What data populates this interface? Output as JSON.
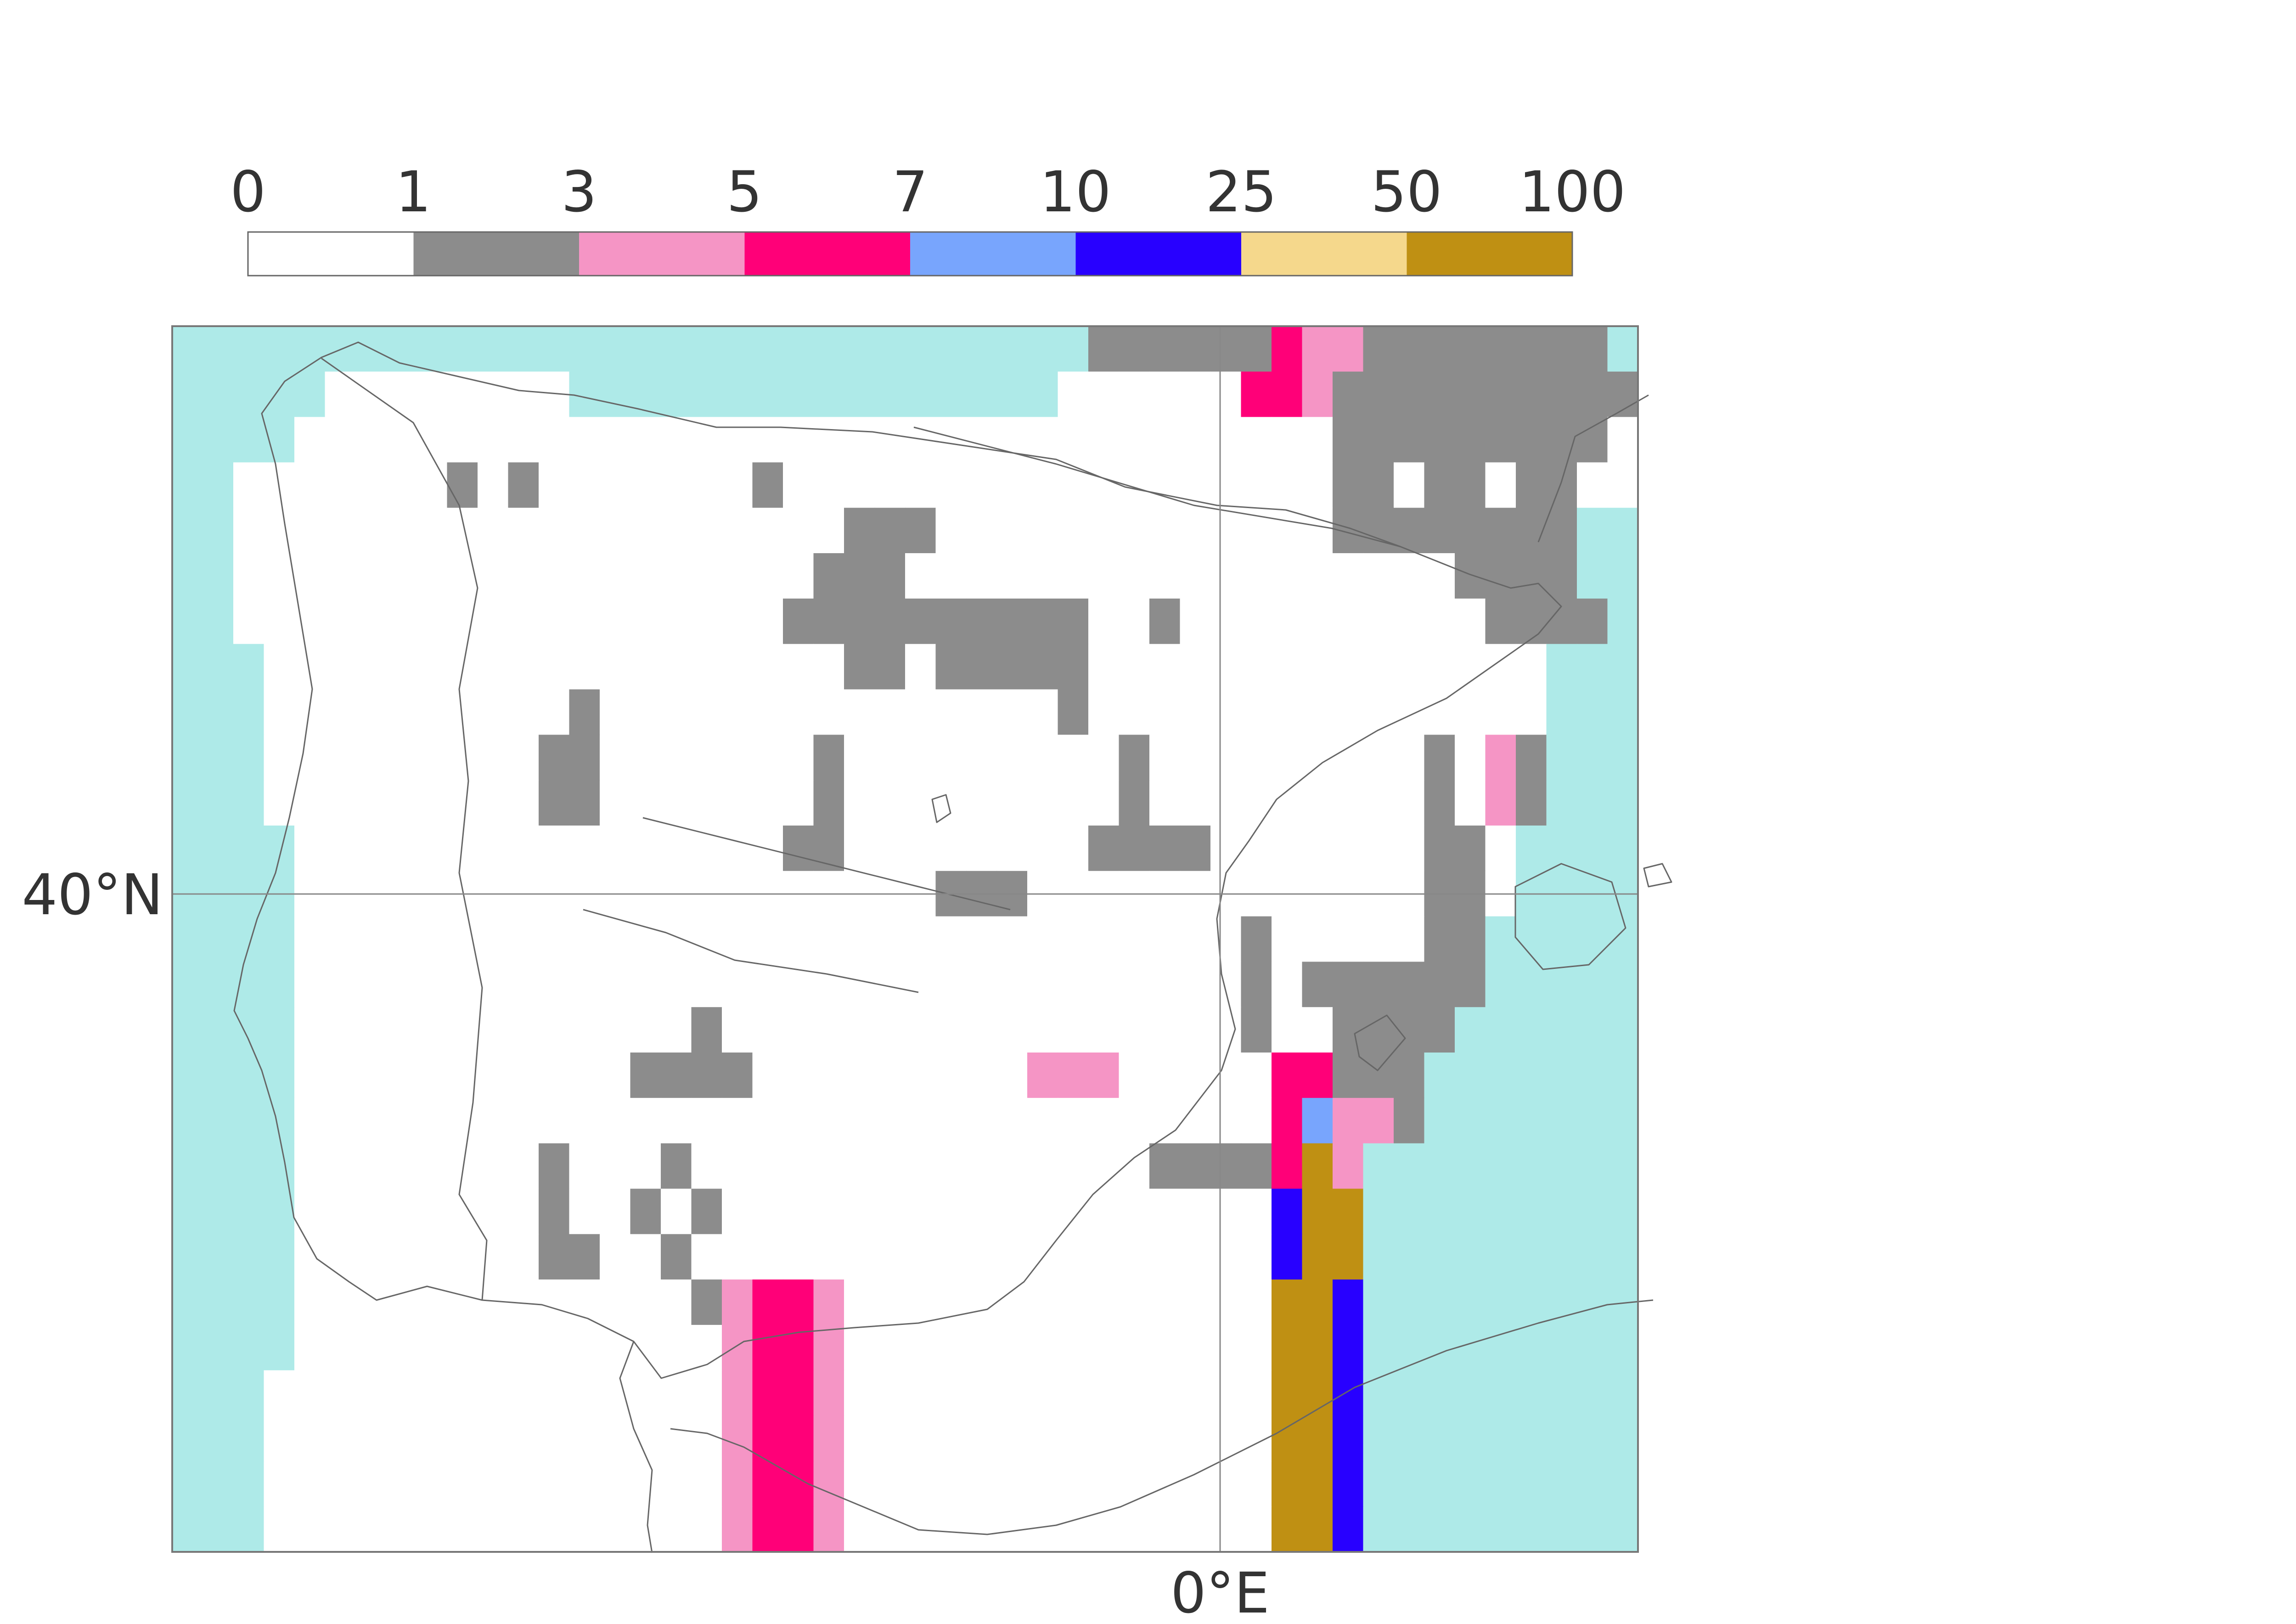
{
  "colorbar": {
    "tick_labels": [
      "0",
      "1",
      "3",
      "5",
      "7",
      "10",
      "25",
      "50",
      "100"
    ],
    "colors": [
      "#ffffff",
      "#8c8c8c",
      "#f595c5",
      "#ff0078",
      "#78a5fd",
      "#2800ff",
      "#f5d88c",
      "#bf9013"
    ]
  },
  "map": {
    "ocean_color": "#aeeae8",
    "cell_codes": [
      "0: no data",
      "1: class 0-1",
      "2: class 1-3",
      "3: class 3-5",
      "4: class 5-7",
      "5: class 7-10",
      "6: class 10-25",
      "7: class 25-50",
      "8: class 50-100",
      "9: sea"
    ],
    "grid": [
      "999999999999999999999999999999111111322111111119",
      "999990000000099999999999999990000003321111111111",
      "999900000000000000000000000000000000001111111110",
      "990000000101000000010000000000000000001101101100",
      "990000000000000000000011100000000000001111111199",
      "990000000000000000000111000000000000000000111199",
      "990000000000000000001111111111001000000000011119",
      "999000000000000000000011011111000000000000000999",
      "999000000000010000000000000001000000000000000999",
      "999000000000110000000100000000010000000001021999",
      "999000000000110000000100000000010000000001021999",
      "999900000000000000001100000000111100000001109999",
      "999900000000000000000000011100000000000001109999",
      "999900000000000000000000000000000001000001199999",
      "999900000000000000000000000000000001011111199999",
      "999900000000000001000000000000000001001111999999",
      "999900000000000111100000000022200000331119999999",
      "999900000000000000000000000000000000342219999999",
      "999900000000100010000000000000001111372999999999",
      "999900000000100101000000000000000000577999999999",
      "999900000000110010000000000000000000577999999999",
      "999900000000000001233200000000000000775999999999",
      "999900000000000000233200000000000000775999999999",
      "999000000000000000233200000000000000775999999999",
      "999000000000000000233200000000000000775999999999",
      "999000000000000000233200000000000000775999999999",
      "999000000000000000233200000000000000775999999999"
    ]
  }
}
